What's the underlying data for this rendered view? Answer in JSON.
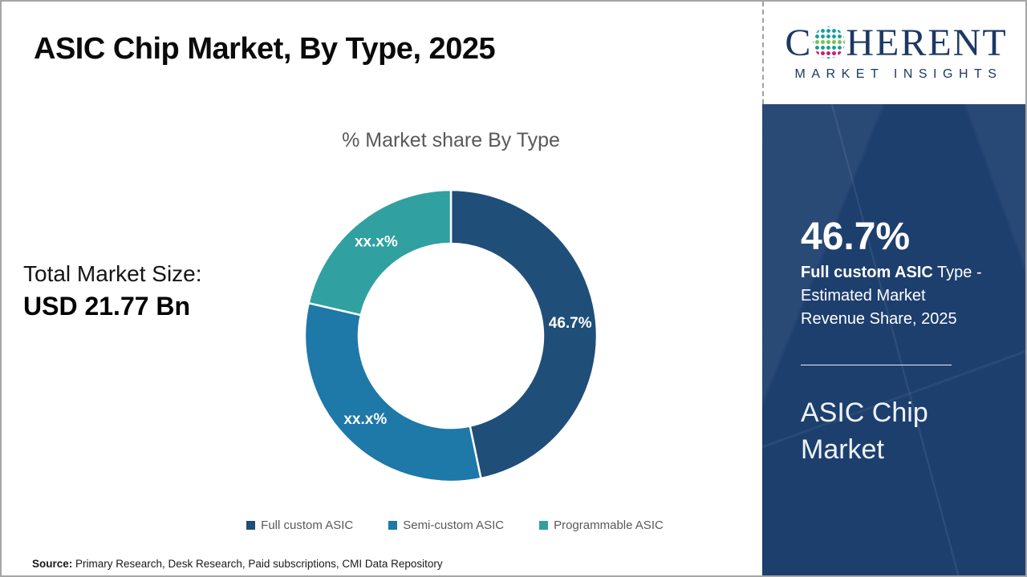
{
  "header": {
    "title": "ASIC Chip Market, By Type, 2025"
  },
  "left_panel": {
    "total_label": "Total Market Size:",
    "total_value": "USD 21.77 Bn"
  },
  "chart_data": {
    "type": "pie",
    "subtype": "donut",
    "title": "% Market share By Type",
    "unit": "%",
    "donut_hole_ratio": 0.63,
    "start_angle_deg": 0,
    "legend_position": "bottom",
    "segments": [
      {
        "label": "Full custom ASIC",
        "value": 46.7,
        "display": "46.7%",
        "color": "#1f4e79"
      },
      {
        "label": "Semi-custom ASIC",
        "value": 31.9,
        "display": "xx.x%",
        "color": "#1e78a8"
      },
      {
        "label": "Programmable ASIC",
        "value": 21.4,
        "display": "xx.x%",
        "color": "#30a0a0"
      }
    ]
  },
  "logo": {
    "part1": "C",
    "part2": "HERENT",
    "sphere_icon": "coherent-dotted-globe",
    "subtitle": "MARKET INSIGHTS",
    "brand_color": "#1c3863"
  },
  "sidebar": {
    "stat_value": "46.7%",
    "stat_bold": "Full custom ASIC",
    "stat_rest": " Type - Estimated Market Revenue Share, 2025",
    "product_title": "ASIC Chip Market",
    "bg_color": "#1d3f6e"
  },
  "footer": {
    "source_label": "Source:",
    "source_text": " Primary Research, Desk Research, Paid subscriptions, CMI Data Repository"
  },
  "theme": {
    "border_gray": "#a6a6a6",
    "text_gray": "#595959",
    "title_black": "#0a0a0a"
  }
}
